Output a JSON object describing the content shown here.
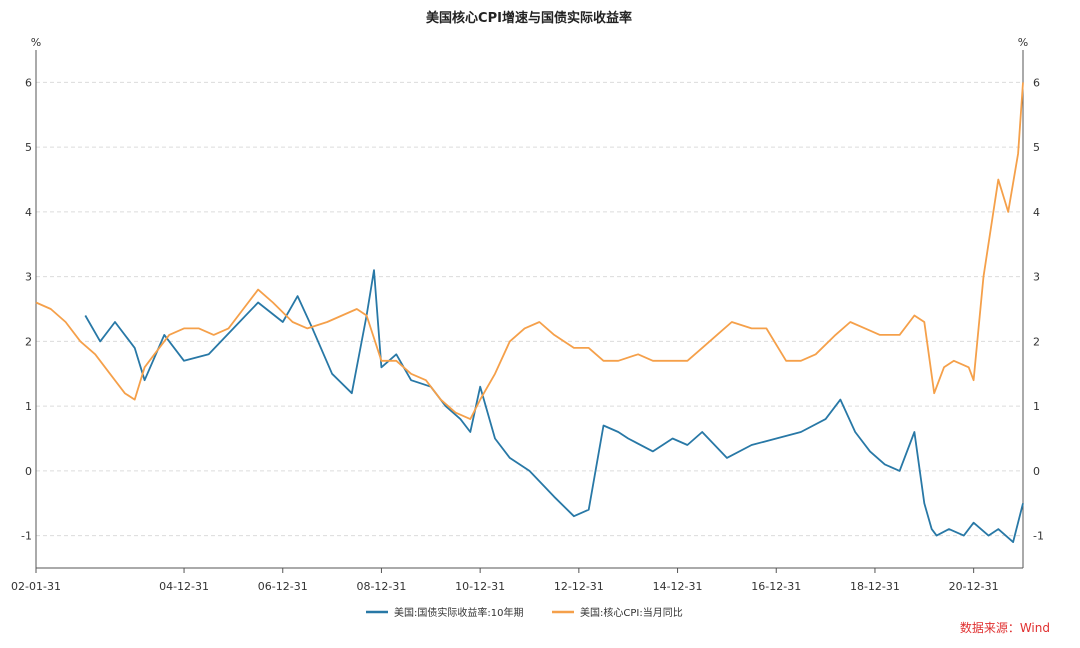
{
  "chart_data": {
    "type": "line",
    "title": "美国核心CPI增速与国债实际收益率",
    "left_unit": "%",
    "right_unit": "%",
    "ylim": [
      -1.5,
      6.5
    ],
    "yticks": [
      "-1",
      "0",
      "1",
      "2",
      "3",
      "4",
      "5",
      "6"
    ],
    "x_range": [
      2002.0,
      2022.0
    ],
    "xtick_labels": [
      "02-01-31",
      "04-12-31",
      "06-12-31",
      "08-12-31",
      "10-12-31",
      "12-12-31",
      "14-12-31",
      "16-12-31",
      "18-12-31",
      "20-12-31"
    ],
    "grid": "horizontal dashed",
    "legend_position": "bottom-center",
    "source": "数据来源：Wind",
    "series": [
      {
        "name": "美国:国债实际收益率:10年期",
        "color": "#2878a6",
        "x": [
          2003.0,
          2003.3,
          2003.6,
          2004.0,
          2004.2,
          2004.6,
          2005.0,
          2005.5,
          2006.0,
          2006.5,
          2007.0,
          2007.3,
          2007.6,
          2008.0,
          2008.4,
          2008.7,
          2008.85,
          2009.0,
          2009.3,
          2009.6,
          2010.0,
          2010.3,
          2010.6,
          2010.8,
          2011.0,
          2011.3,
          2011.6,
          2012.0,
          2012.5,
          2012.9,
          2013.2,
          2013.5,
          2013.8,
          2014.0,
          2014.5,
          2014.9,
          2015.2,
          2015.5,
          2016.0,
          2016.5,
          2017.0,
          2017.5,
          2018.0,
          2018.3,
          2018.6,
          2018.9,
          2019.2,
          2019.5,
          2019.8,
          2020.0,
          2020.15,
          2020.25,
          2020.5,
          2020.8,
          2021.0,
          2021.3,
          2021.5,
          2021.8,
          2022.0
        ],
        "values": [
          2.4,
          2.0,
          2.3,
          1.9,
          1.4,
          2.1,
          1.7,
          1.8,
          2.2,
          2.6,
          2.3,
          2.7,
          2.2,
          1.5,
          1.2,
          2.4,
          3.1,
          1.6,
          1.8,
          1.4,
          1.3,
          1.0,
          0.8,
          0.6,
          1.3,
          0.5,
          0.2,
          0.0,
          -0.4,
          -0.7,
          -0.6,
          0.7,
          0.6,
          0.5,
          0.3,
          0.5,
          0.4,
          0.6,
          0.2,
          0.4,
          0.5,
          0.6,
          0.8,
          1.1,
          0.6,
          0.3,
          0.1,
          0.0,
          0.6,
          -0.5,
          -0.9,
          -1.0,
          -0.9,
          -1.0,
          -0.8,
          -1.0,
          -0.9,
          -1.1,
          -0.5
        ]
      },
      {
        "name": "美国:核心CPI:当月同比",
        "color": "#f5a04a",
        "x": [
          2002.0,
          2002.3,
          2002.6,
          2002.9,
          2003.2,
          2003.5,
          2003.8,
          2004.0,
          2004.2,
          2004.4,
          2004.7,
          2005.0,
          2005.3,
          2005.6,
          2005.9,
          2006.2,
          2006.5,
          2006.8,
          2007.2,
          2007.5,
          2007.9,
          2008.2,
          2008.5,
          2008.7,
          2009.0,
          2009.3,
          2009.6,
          2009.9,
          2010.2,
          2010.5,
          2010.8,
          2011.0,
          2011.3,
          2011.6,
          2011.9,
          2012.2,
          2012.5,
          2012.9,
          2013.2,
          2013.5,
          2013.8,
          2014.2,
          2014.5,
          2014.9,
          2015.2,
          2015.5,
          2015.8,
          2016.1,
          2016.5,
          2016.8,
          2017.2,
          2017.5,
          2017.8,
          2018.2,
          2018.5,
          2018.8,
          2019.1,
          2019.5,
          2019.8,
          2020.0,
          2020.2,
          2020.4,
          2020.6,
          2020.9,
          2021.0,
          2021.2,
          2021.5,
          2021.7,
          2021.9,
          2022.0
        ],
        "values": [
          2.6,
          2.5,
          2.3,
          2.0,
          1.8,
          1.5,
          1.2,
          1.1,
          1.6,
          1.8,
          2.1,
          2.2,
          2.2,
          2.1,
          2.2,
          2.5,
          2.8,
          2.6,
          2.3,
          2.2,
          2.3,
          2.4,
          2.5,
          2.4,
          1.7,
          1.7,
          1.5,
          1.4,
          1.1,
          0.9,
          0.8,
          1.1,
          1.5,
          2.0,
          2.2,
          2.3,
          2.1,
          1.9,
          1.9,
          1.7,
          1.7,
          1.8,
          1.7,
          1.7,
          1.7,
          1.9,
          2.1,
          2.3,
          2.2,
          2.2,
          1.7,
          1.7,
          1.8,
          2.1,
          2.3,
          2.2,
          2.1,
          2.1,
          2.4,
          2.3,
          1.2,
          1.6,
          1.7,
          1.6,
          1.4,
          3.0,
          4.5,
          4.0,
          4.9,
          6.0
        ]
      }
    ]
  }
}
